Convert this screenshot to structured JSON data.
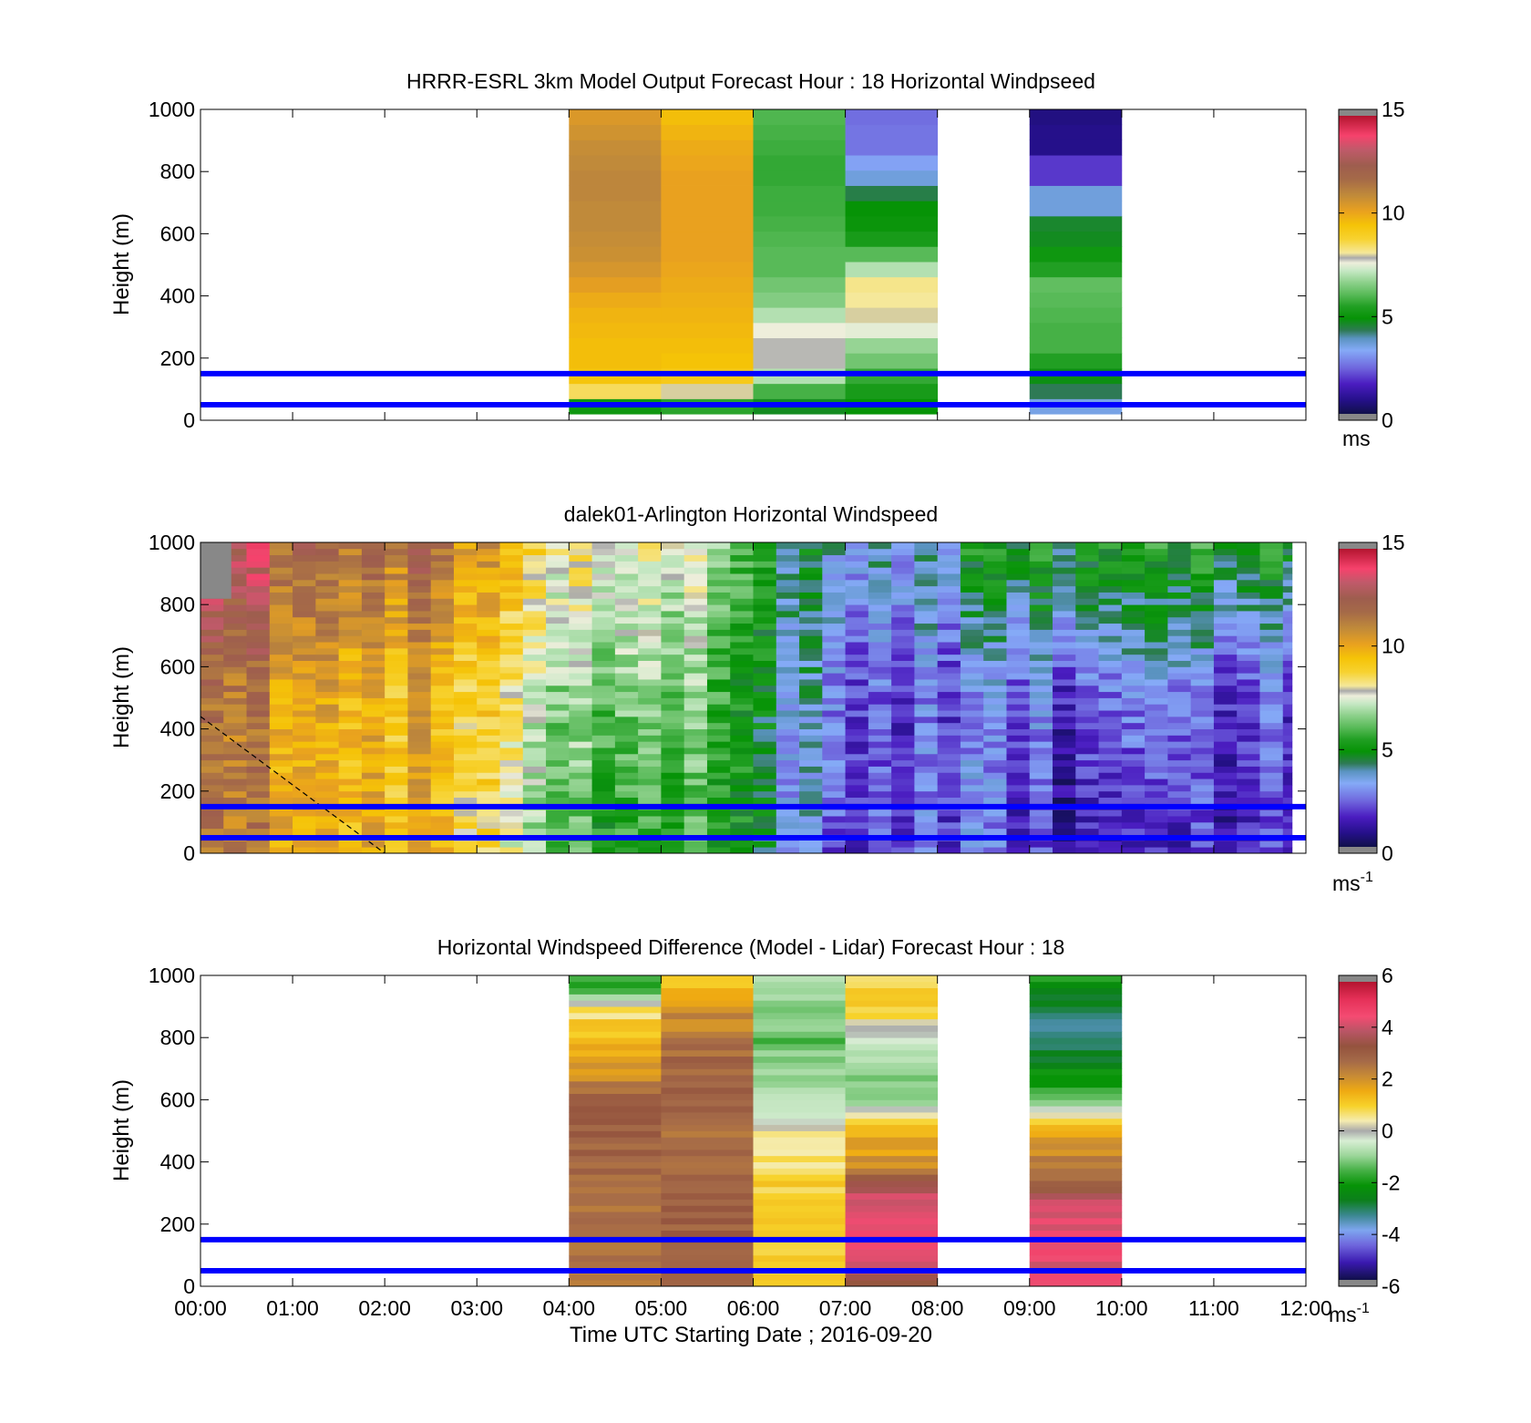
{
  "figure": {
    "xlabel": "Time UTC  Starting Date ; 2016-09-20",
    "xlim": [
      0,
      12
    ],
    "xtick_labels": [
      "00:00",
      "01:00",
      "02:00",
      "03:00",
      "04:00",
      "05:00",
      "06:00",
      "07:00",
      "08:00",
      "09:00",
      "10:00",
      "11:00",
      "12:00"
    ]
  },
  "colors": {
    "reference_lines": "#0000ff",
    "missing": "#888888"
  },
  "chart_data": [
    {
      "type": "heatmap",
      "title": "HRRR-ESRL 3km Model Output   Forecast Hour : 18 Horizontal Windpseed",
      "ylabel": "Height (m)",
      "ylim": [
        0,
        1000
      ],
      "yticks": [
        0,
        200,
        400,
        600,
        800,
        1000
      ],
      "reference_lines_m": [
        50,
        150
      ],
      "colorbar": {
        "min": 0,
        "max": 15,
        "ticks": [
          0,
          5,
          10,
          15
        ],
        "unit": "ms",
        "unit_sup": ""
      },
      "column_width_h": 1,
      "columns": [
        {
          "x": 4,
          "bottom": 20,
          "top": 1000,
          "values": [
            5.0,
            8.5,
            9.4,
            9.6,
            9.6,
            9.7,
            9.8,
            10.0,
            10.3,
            10.6,
            10.8,
            10.9,
            11.0,
            11.0,
            11.1,
            11.1,
            11.0,
            10.9,
            10.7,
            10.5
          ]
        },
        {
          "x": 5,
          "bottom": 20,
          "top": 1000,
          "values": [
            5.5,
            8.0,
            9.2,
            9.5,
            9.6,
            9.7,
            9.8,
            9.9,
            10.0,
            10.1,
            10.2,
            10.2,
            10.2,
            10.2,
            10.2,
            10.2,
            10.1,
            10.0,
            9.8,
            9.6
          ]
        },
        {
          "x": 6,
          "bottom": 20,
          "top": 1000,
          "values": [
            4.6,
            5.8,
            7.0,
            7.8,
            7.8,
            7.6,
            7.0,
            6.5,
            6.3,
            6.0,
            6.0,
            5.9,
            5.8,
            5.7,
            5.7,
            5.6,
            5.6,
            5.7,
            5.8,
            5.9
          ]
        },
        {
          "x": 7,
          "bottom": 20,
          "top": 1000,
          "values": [
            4.8,
            5.2,
            5.6,
            6.3,
            6.7,
            7.5,
            8.0,
            8.1,
            8.2,
            7.0,
            6.0,
            5.2,
            4.9,
            4.8,
            4.3,
            3.5,
            3.1,
            2.5,
            2.5,
            2.4
          ]
        },
        {
          "x": 9,
          "bottom": 20,
          "top": 1000,
          "values": [
            3.4,
            4.2,
            4.7,
            5.4,
            5.8,
            5.8,
            5.9,
            6.0,
            6.1,
            5.4,
            5.0,
            4.6,
            4.5,
            3.5,
            3.5,
            1.8,
            1.8,
            0.7,
            0.7,
            0.6
          ]
        }
      ]
    },
    {
      "type": "heatmap",
      "title": "dalek01-Arlington  Horizontal Windspeed",
      "ylabel": "Height (m)",
      "ylim": [
        0,
        1000
      ],
      "yticks": [
        0,
        200,
        400,
        600,
        800,
        1000
      ],
      "reference_lines_m": [
        50,
        150
      ],
      "colorbar": {
        "min": 0,
        "max": 15,
        "ticks": [
          0,
          5,
          10,
          15
        ],
        "unit": "ms",
        "unit_sup": "-1"
      },
      "time_step_h": 0.25,
      "column_width_h": 0.25,
      "height_step_m": 20,
      "lidar_profiles": {
        "times_h": [
          0.0,
          0.5,
          1.0,
          1.5,
          2.0,
          2.5,
          3.0,
          3.5,
          4.0,
          4.5,
          5.0,
          5.5,
          6.0,
          6.5,
          7.0,
          7.5,
          8.0,
          8.5,
          9.0,
          9.5,
          10.0,
          10.5,
          11.0,
          11.5,
          12.0
        ],
        "low_m": [
          11.5,
          11.0,
          10.5,
          10.0,
          10.0,
          9.5,
          9.0,
          8.0,
          5.5,
          4.5,
          4.5,
          5.5,
          5.0,
          3.0,
          2.0,
          2.0,
          2.5,
          2.0,
          1.5,
          1.0,
          1.0,
          1.0,
          1.2,
          1.5,
          1.5
        ],
        "mid_m": [
          11.5,
          11.0,
          10.5,
          10.0,
          10.0,
          9.5,
          9.5,
          8.5,
          6.5,
          5.5,
          6.0,
          6.0,
          5.0,
          3.5,
          2.5,
          2.0,
          2.5,
          2.0,
          2.5,
          2.0,
          2.5,
          2.5,
          2.0,
          2.0,
          2.0
        ],
        "high_m": [
          13.5,
          13.0,
          12.5,
          12.0,
          12.0,
          11.5,
          11.0,
          10.0,
          8.0,
          7.0,
          7.5,
          7.0,
          6.0,
          4.5,
          3.5,
          4.0,
          4.0,
          4.5,
          5.0,
          5.0,
          5.0,
          5.0,
          5.0,
          5.0,
          5.0
        ]
      },
      "missing_patch": {
        "x0": 0,
        "x1": 0.33,
        "y0": 820,
        "y1": 1000
      },
      "dashed_line": {
        "x0": 0,
        "y0": 440,
        "x1": 2.0,
        "y1": 0
      }
    },
    {
      "type": "heatmap",
      "title": "Horizontal Windspeed Difference (Model - Lidar) Forecast Hour : 18",
      "ylabel": "Height (m)",
      "ylim": [
        0,
        1000
      ],
      "yticks": [
        0,
        200,
        400,
        600,
        800,
        1000
      ],
      "reference_lines_m": [
        50,
        150
      ],
      "colorbar": {
        "min": -6,
        "max": 6,
        "ticks": [
          -6,
          -4,
          -2,
          0,
          2,
          4,
          6
        ],
        "unit": "ms",
        "unit_sup": "-1"
      },
      "column_width_h": 1,
      "height_step_m": 20,
      "columns": [
        {
          "x": 4,
          "bottom": 0,
          "top": 1000,
          "profile": [
            [
              0,
              2.5
            ],
            [
              200,
              2.5
            ],
            [
              400,
              3.0
            ],
            [
              600,
              3.0
            ],
            [
              700,
              2.0
            ],
            [
              850,
              1.0
            ],
            [
              900,
              0.5
            ],
            [
              950,
              -1.5
            ],
            [
              1000,
              -2.0
            ]
          ]
        },
        {
          "x": 5,
          "bottom": 0,
          "top": 1000,
          "profile": [
            [
              0,
              3.0
            ],
            [
              300,
              3.0
            ],
            [
              500,
              2.8
            ],
            [
              700,
              3.0
            ],
            [
              900,
              2.0
            ],
            [
              950,
              1.5
            ],
            [
              1000,
              1.0
            ]
          ]
        },
        {
          "x": 6,
          "bottom": 0,
          "top": 1000,
          "profile": [
            [
              0,
              1.0
            ],
            [
              300,
              1.0
            ],
            [
              500,
              0.5
            ],
            [
              550,
              -0.5
            ],
            [
              700,
              -1.0
            ],
            [
              800,
              -1.5
            ],
            [
              900,
              -1.0
            ],
            [
              1000,
              -0.5
            ]
          ]
        },
        {
          "x": 7,
          "bottom": 0,
          "top": 1000,
          "profile": [
            [
              0,
              3.5
            ],
            [
              150,
              4.5
            ],
            [
              300,
              4.0
            ],
            [
              400,
              2.0
            ],
            [
              500,
              1.5
            ],
            [
              600,
              -1.0
            ],
            [
              700,
              -1.0
            ],
            [
              800,
              0.0
            ],
            [
              900,
              1.0
            ],
            [
              1000,
              1.0
            ]
          ]
        },
        {
          "x": 9,
          "bottom": 0,
          "top": 1000,
          "profile": [
            [
              0,
              4.5
            ],
            [
              250,
              4.5
            ],
            [
              300,
              3.5
            ],
            [
              400,
              2.5
            ],
            [
              500,
              1.5
            ],
            [
              600,
              -1.5
            ],
            [
              700,
              -2.5
            ],
            [
              800,
              -3.5
            ],
            [
              900,
              -3.0
            ],
            [
              1000,
              -2.0
            ]
          ]
        }
      ]
    }
  ]
}
